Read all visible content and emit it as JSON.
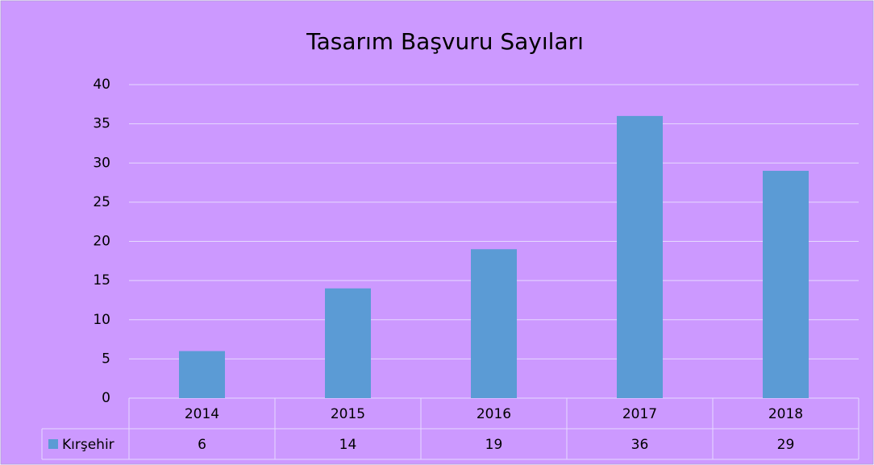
{
  "chart_data": {
    "type": "bar",
    "title": "Tasarım Başvuru Sayıları",
    "categories": [
      "2014",
      "2015",
      "2016",
      "2017",
      "2018"
    ],
    "series": [
      {
        "name": "Kırşehir",
        "color": "#5b9bd5",
        "values": [
          6,
          14,
          19,
          36,
          29
        ]
      }
    ],
    "ylim": [
      0,
      40
    ],
    "yticks": [
      0,
      5,
      10,
      15,
      20,
      25,
      30,
      35,
      40
    ],
    "grid": true,
    "legend": "bottom"
  }
}
